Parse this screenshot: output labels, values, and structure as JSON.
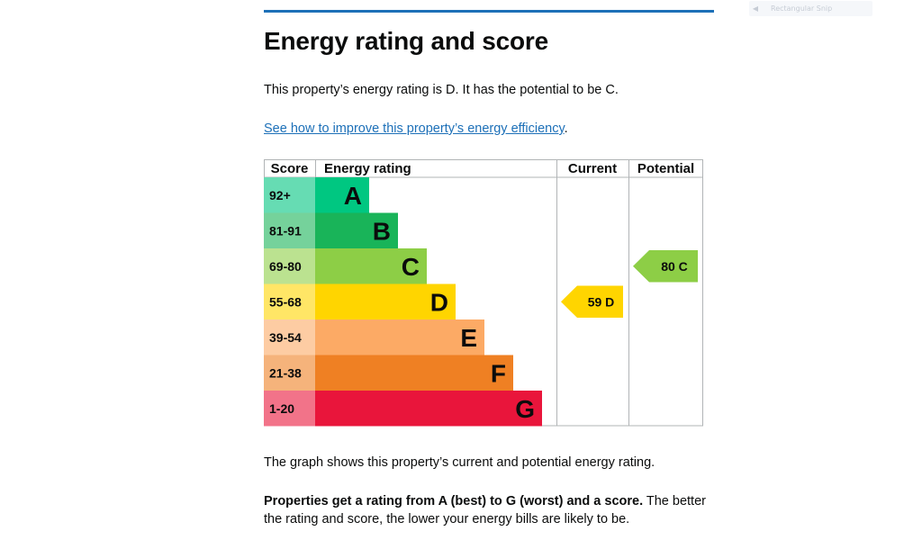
{
  "toolbar": {
    "snip_label": "Rectangular Snip",
    "snip_icon": "arrow-left-icon"
  },
  "page": {
    "title": "Energy rating and score",
    "intro": "This property’s energy rating is D. It has the potential to be C.",
    "link_text": "See how to improve this property’s energy efficiency",
    "link_suffix": ".",
    "graph_description": "The graph shows this property’s current and potential energy rating.",
    "rating_note_bold": "Properties get a rating from A (best) to G (worst) and a score.",
    "rating_note_rest": " The better the rating and score, the lower your energy bills are likely to be."
  },
  "colors": {
    "link": "#1d70b8",
    "rule": "#1d70b8"
  },
  "chart_data": {
    "type": "table",
    "headers": [
      "Score",
      "Energy rating",
      "Current",
      "Potential"
    ],
    "bands": [
      {
        "score": "92+",
        "letter": "A",
        "color": "#00c781",
        "score_color": "#66dcb3"
      },
      {
        "score": "81-91",
        "letter": "B",
        "color": "#19b459",
        "score_color": "#75d29b"
      },
      {
        "score": "69-80",
        "letter": "C",
        "color": "#8dce46",
        "score_color": "#bbe290"
      },
      {
        "score": "55-68",
        "letter": "D",
        "color": "#ffd500",
        "score_color": "#ffe666"
      },
      {
        "score": "39-54",
        "letter": "E",
        "color": "#fcaa65",
        "score_color": "#fdcca3"
      },
      {
        "score": "21-38",
        "letter": "F",
        "color": "#ef8023",
        "score_color": "#f5b37b"
      },
      {
        "score": "1-20",
        "letter": "G",
        "color": "#e9153b",
        "score_color": "#f27389"
      }
    ],
    "current": {
      "score": 59,
      "letter": "D",
      "label": "59  D",
      "color": "#ffd500"
    },
    "potential": {
      "score": 80,
      "letter": "C",
      "label": "80  C",
      "color": "#8dce46"
    }
  }
}
